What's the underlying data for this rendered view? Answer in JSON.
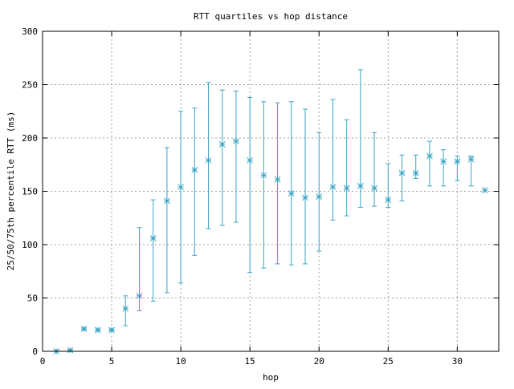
{
  "chart_data": {
    "type": "scatter",
    "title": "RTT quartiles vs hop distance",
    "xlabel": "hop",
    "ylabel": "25/50/75th percentile RTT (ms)",
    "xlim": [
      0,
      33
    ],
    "ylim": [
      0,
      300
    ],
    "x_ticks": [
      0,
      5,
      10,
      15,
      20,
      25,
      30
    ],
    "y_ticks": [
      0,
      50,
      100,
      150,
      200,
      250,
      300
    ],
    "grid": true,
    "series_color": "#3ba4c4",
    "points": [
      {
        "hop": 1,
        "p25": 0,
        "p50": 0,
        "p75": 1
      },
      {
        "hop": 2,
        "p25": 1,
        "p50": 1,
        "p75": 2
      },
      {
        "hop": 3,
        "p25": 20,
        "p50": 21,
        "p75": 22
      },
      {
        "hop": 4,
        "p25": 19,
        "p50": 20,
        "p75": 21
      },
      {
        "hop": 5,
        "p25": 19,
        "p50": 20,
        "p75": 21
      },
      {
        "hop": 6,
        "p25": 24,
        "p50": 40,
        "p75": 52
      },
      {
        "hop": 7,
        "p25": 38,
        "p50": 52,
        "p75": 116
      },
      {
        "hop": 8,
        "p25": 47,
        "p50": 106,
        "p75": 142
      },
      {
        "hop": 9,
        "p25": 55,
        "p50": 141,
        "p75": 191
      },
      {
        "hop": 10,
        "p25": 64,
        "p50": 154,
        "p75": 225
      },
      {
        "hop": 11,
        "p25": 90,
        "p50": 170,
        "p75": 228
      },
      {
        "hop": 12,
        "p25": 115,
        "p50": 179,
        "p75": 252
      },
      {
        "hop": 13,
        "p25": 118,
        "p50": 194,
        "p75": 245
      },
      {
        "hop": 14,
        "p25": 121,
        "p50": 197,
        "p75": 244
      },
      {
        "hop": 15,
        "p25": 74,
        "p50": 179,
        "p75": 238
      },
      {
        "hop": 16,
        "p25": 78,
        "p50": 165,
        "p75": 234
      },
      {
        "hop": 17,
        "p25": 82,
        "p50": 161,
        "p75": 233
      },
      {
        "hop": 18,
        "p25": 81,
        "p50": 148,
        "p75": 234
      },
      {
        "hop": 19,
        "p25": 82,
        "p50": 144,
        "p75": 227
      },
      {
        "hop": 20,
        "p25": 94,
        "p50": 145,
        "p75": 205
      },
      {
        "hop": 21,
        "p25": 123,
        "p50": 154,
        "p75": 236
      },
      {
        "hop": 22,
        "p25": 127,
        "p50": 153,
        "p75": 217
      },
      {
        "hop": 23,
        "p25": 135,
        "p50": 155,
        "p75": 264
      },
      {
        "hop": 24,
        "p25": 136,
        "p50": 153,
        "p75": 205
      },
      {
        "hop": 25,
        "p25": 135,
        "p50": 142,
        "p75": 176
      },
      {
        "hop": 26,
        "p25": 141,
        "p50": 167,
        "p75": 184
      },
      {
        "hop": 27,
        "p25": 162,
        "p50": 167,
        "p75": 184
      },
      {
        "hop": 28,
        "p25": 155,
        "p50": 183,
        "p75": 197
      },
      {
        "hop": 29,
        "p25": 155,
        "p50": 178,
        "p75": 189
      },
      {
        "hop": 30,
        "p25": 160,
        "p50": 178,
        "p75": 183
      },
      {
        "hop": 31,
        "p25": 155,
        "p50": 180,
        "p75": 183
      },
      {
        "hop": 32,
        "p25": 151,
        "p50": 151,
        "p75": 151
      }
    ]
  }
}
